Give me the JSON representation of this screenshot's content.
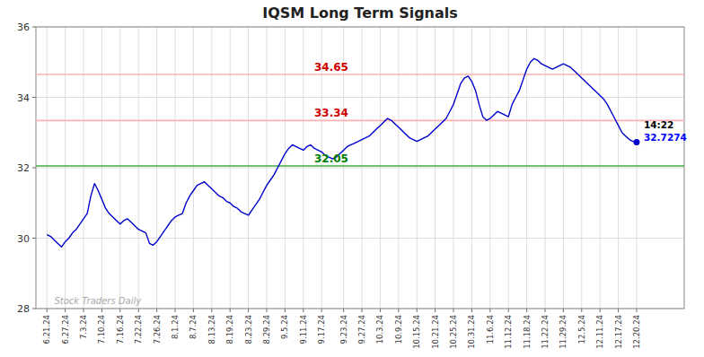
{
  "chart_data": {
    "type": "line",
    "title": "IQSM Long Term Signals",
    "color": "#0000cc",
    "grid": true,
    "ylim": [
      28,
      36
    ],
    "yticks": [
      28,
      30,
      32,
      34,
      36
    ],
    "categories": [
      "6.21.24",
      null,
      null,
      null,
      null,
      "6.27.24",
      null,
      null,
      null,
      null,
      "7.3.24",
      null,
      null,
      null,
      null,
      "7.10.24",
      null,
      null,
      null,
      null,
      "7.16.24",
      null,
      null,
      null,
      null,
      "7.22.24",
      null,
      null,
      null,
      null,
      "7.26.24",
      null,
      null,
      null,
      null,
      "8.1.24",
      null,
      null,
      null,
      null,
      "8.7.24",
      null,
      null,
      null,
      null,
      "8.13.24",
      null,
      null,
      null,
      null,
      "8.19.24",
      null,
      null,
      null,
      null,
      "8.23.24",
      null,
      null,
      null,
      null,
      "8.29.24",
      null,
      null,
      null,
      null,
      "9.5.24",
      null,
      null,
      null,
      null,
      "9.11.24",
      null,
      null,
      null,
      null,
      "9.17.24",
      null,
      null,
      null,
      null,
      null,
      "9.23.24",
      null,
      null,
      null,
      null,
      "9.27.24",
      null,
      null,
      null,
      null,
      "10.3.24",
      null,
      null,
      null,
      null,
      "10.9.24",
      null,
      null,
      null,
      null,
      "10.15.24",
      null,
      null,
      null,
      null,
      "10.21.24",
      null,
      null,
      null,
      null,
      "10.25.24",
      null,
      null,
      null,
      null,
      "10.31.24",
      null,
      null,
      null,
      null,
      "11.6.24",
      null,
      null,
      null,
      null,
      "11.12.24",
      null,
      null,
      null,
      null,
      "11.18.24",
      null,
      null,
      null,
      null,
      "11.22.24",
      null,
      null,
      null,
      null,
      "11.29.24",
      null,
      null,
      null,
      null,
      "12.5.24",
      null,
      null,
      null,
      null,
      "12.11.24",
      null,
      null,
      null,
      null,
      "12.17.24",
      null,
      null,
      null,
      null,
      "12.20.24"
    ],
    "values": [
      30.1,
      30.05,
      29.95,
      29.85,
      29.75,
      29.9,
      30.0,
      30.15,
      30.25,
      30.4,
      30.55,
      30.7,
      31.2,
      31.55,
      31.35,
      31.1,
      30.85,
      30.7,
      30.6,
      30.5,
      30.4,
      30.5,
      30.55,
      30.45,
      30.35,
      30.25,
      30.2,
      30.15,
      29.85,
      29.8,
      29.9,
      30.05,
      30.2,
      30.35,
      30.5,
      30.6,
      30.65,
      30.7,
      31.0,
      31.2,
      31.35,
      31.5,
      31.55,
      31.6,
      31.5,
      31.4,
      31.3,
      31.2,
      31.15,
      31.05,
      31.0,
      30.9,
      30.85,
      30.75,
      30.7,
      30.65,
      30.8,
      30.95,
      31.1,
      31.3,
      31.5,
      31.65,
      31.8,
      32.0,
      32.2,
      32.4,
      32.55,
      32.65,
      32.6,
      32.55,
      32.5,
      32.6,
      32.65,
      32.55,
      32.5,
      32.45,
      32.35,
      32.3,
      32.25,
      32.3,
      32.4,
      32.5,
      32.6,
      32.65,
      32.7,
      32.75,
      32.8,
      32.85,
      32.9,
      33.0,
      33.1,
      33.2,
      33.3,
      33.4,
      33.35,
      33.25,
      33.15,
      33.05,
      32.95,
      32.85,
      32.8,
      32.75,
      32.8,
      32.85,
      32.9,
      33.0,
      33.1,
      33.2,
      33.3,
      33.4,
      33.6,
      33.8,
      34.1,
      34.4,
      34.55,
      34.6,
      34.45,
      34.2,
      33.8,
      33.45,
      33.35,
      33.4,
      33.5,
      33.6,
      33.55,
      33.5,
      33.45,
      33.8,
      34.0,
      34.2,
      34.5,
      34.8,
      35.0,
      35.1,
      35.05,
      34.95,
      34.9,
      34.85,
      34.8,
      34.85,
      34.9,
      34.95,
      34.9,
      34.85,
      34.75,
      34.65,
      34.55,
      34.45,
      34.35,
      34.25,
      34.15,
      34.05,
      33.95,
      33.8,
      33.6,
      33.4,
      33.2,
      33.0,
      32.9,
      32.8,
      32.75,
      32.7274
    ],
    "annotations": [
      {
        "y": 34.65,
        "text": "34.65",
        "color": "#cc0000",
        "line_color": "#ffb0b0"
      },
      {
        "y": 33.34,
        "text": "33.34",
        "color": "#cc0000",
        "line_color": "#ffb0b0"
      },
      {
        "y": 32.05,
        "text": "32.05",
        "color": "green",
        "line_color": "#44aa44"
      }
    ],
    "end_label": {
      "time": "14:22",
      "price": "32.7274",
      "color": "blue"
    },
    "watermark": "Stock Traders Daily"
  }
}
